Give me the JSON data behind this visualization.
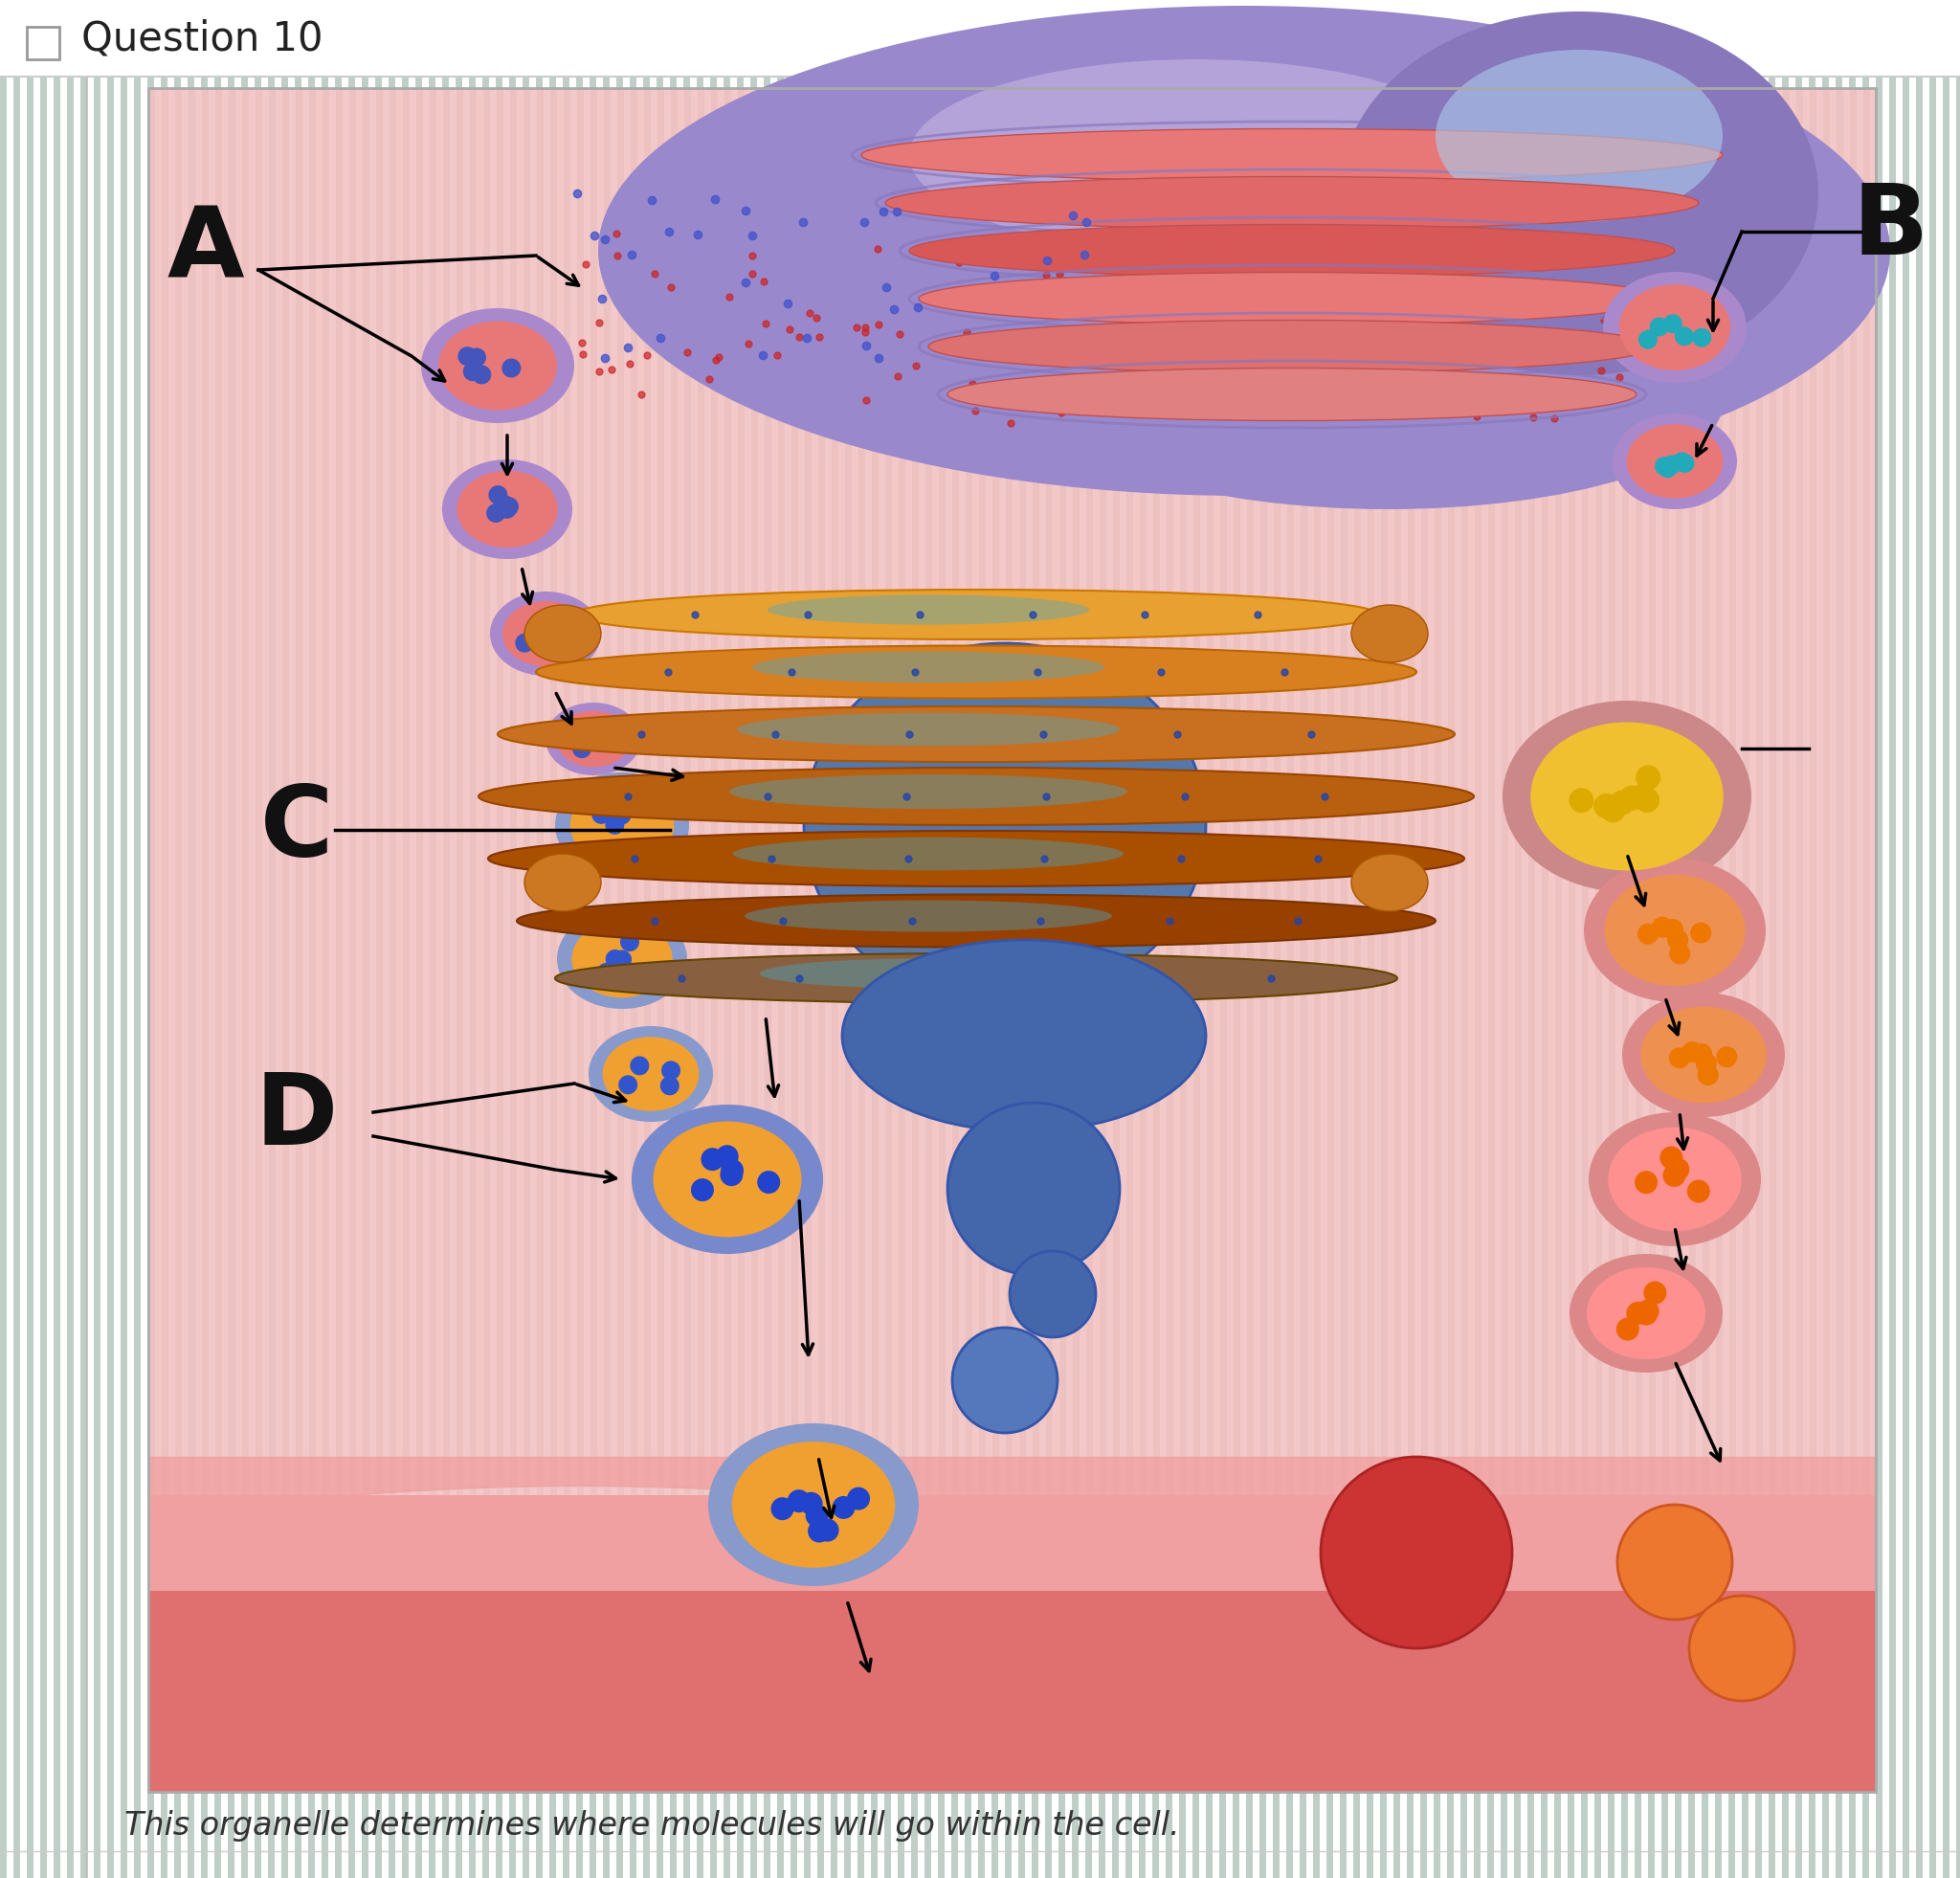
{
  "title": "Question 10",
  "question_text": "This organelle determines where molecules will go within the cell.",
  "label_A": "A",
  "label_B": "B",
  "label_C": "C",
  "label_D": "D",
  "bg_stripe_light": "#cfe0d8",
  "bg_stripe_dark": "#b8cec5",
  "header_bg": "#ffffff",
  "content_bg": "#d8e8de",
  "img_bg_stripe_light": "#f5d0d0",
  "img_bg_stripe_dark": "#eebaba",
  "salmon_band": "#e87878"
}
